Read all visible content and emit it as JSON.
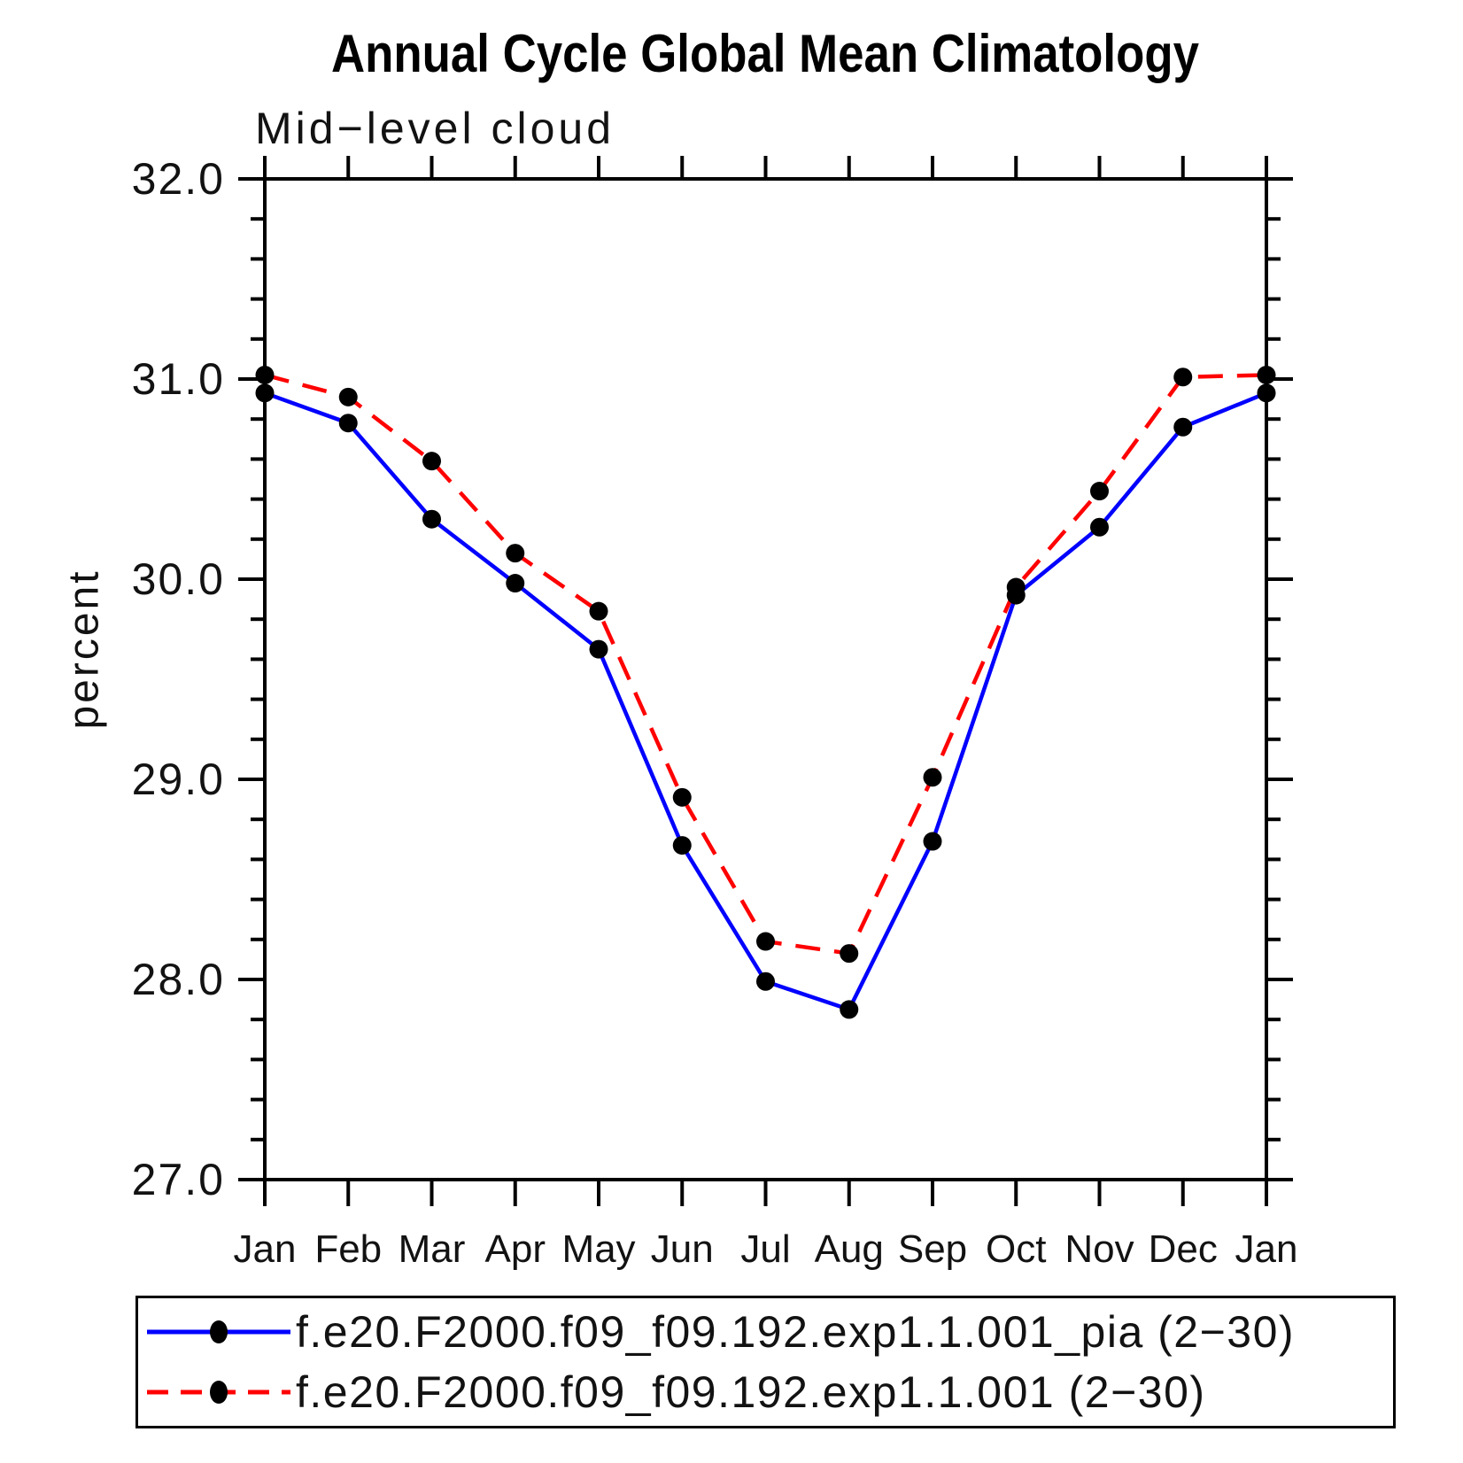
{
  "title": "Annual Cycle Global Mean Climatology",
  "chart_data": {
    "type": "line",
    "title": "Annual Cycle Global Mean Climatology",
    "subtitle": "Mid−level cloud",
    "ylabel": "percent",
    "xlabel": "",
    "categories": [
      "Jan",
      "Feb",
      "Mar",
      "Apr",
      "May",
      "Jun",
      "Jul",
      "Aug",
      "Sep",
      "Oct",
      "Nov",
      "Dec",
      "Jan"
    ],
    "ylim": [
      27.0,
      32.0
    ],
    "ytick_values": [
      32,
      31,
      30,
      29,
      28,
      27
    ],
    "ytick_labels": [
      "32.0",
      "31.0",
      "30.0",
      "29.0",
      "28.0",
      "27.0"
    ],
    "ytick_minor_step": 0.2,
    "grid": false,
    "legend_position": "bottom",
    "axis_color": "#000000",
    "marker_color": "#000000",
    "series": [
      {
        "name": "f.e20.F2000.f09_f09.192.exp1.1.001_pia (2−30)",
        "color": "#0000ff",
        "style": "solid",
        "marker": "filled-circle",
        "values": [
          30.93,
          30.78,
          30.3,
          29.98,
          29.65,
          28.67,
          27.99,
          27.85,
          28.69,
          29.92,
          30.26,
          30.76,
          30.93
        ]
      },
      {
        "name": "f.e20.F2000.f09_f09.192.exp1.1.001 (2−30)",
        "color": "#ff0000",
        "style": "dashed",
        "marker": "filled-circle",
        "values": [
          31.02,
          30.91,
          30.59,
          30.13,
          29.84,
          28.91,
          28.19,
          28.13,
          29.01,
          29.96,
          30.44,
          31.01,
          31.02
        ]
      }
    ]
  }
}
